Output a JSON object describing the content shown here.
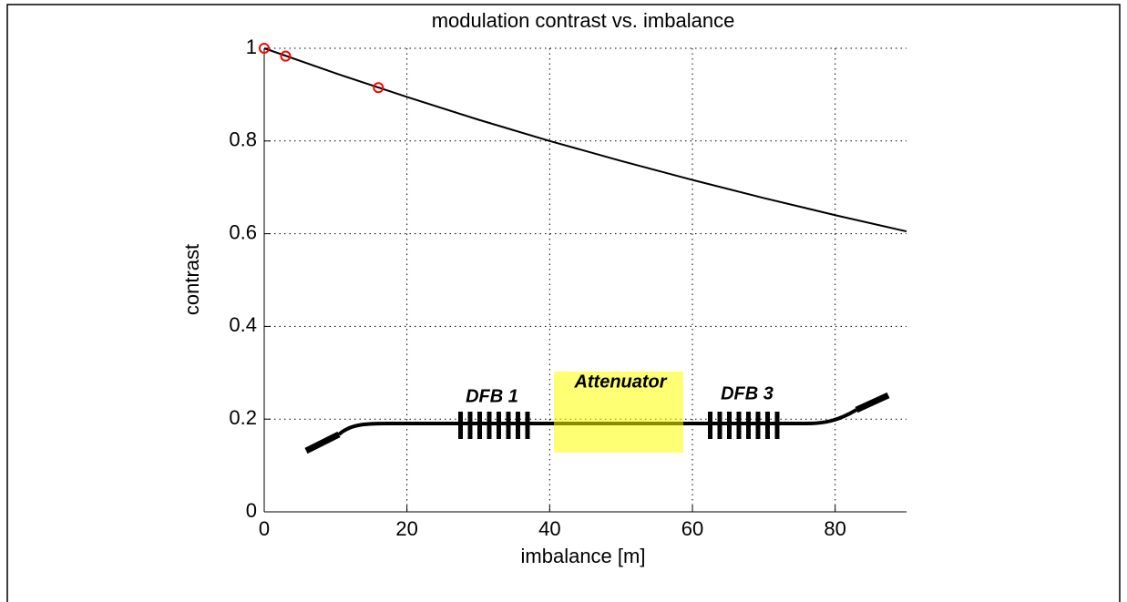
{
  "chart_data": {
    "type": "line",
    "title": "modulation contrast vs. imbalance",
    "x_label": "imbalance [m]",
    "y_label": "contrast",
    "xlim": [
      0,
      90
    ],
    "ylim": [
      0,
      1
    ],
    "xticks": [
      0,
      20,
      40,
      60,
      80
    ],
    "yticks": [
      0,
      0.2,
      0.4,
      0.6,
      0.8,
      1
    ],
    "grid": true,
    "series": [
      {
        "type": "line",
        "color": "#000000",
        "x": [
          0,
          10,
          20,
          30,
          40,
          50,
          60,
          70,
          80,
          90
        ],
        "values": [
          1,
          0.946,
          0.895,
          0.846,
          0.8,
          0.757,
          0.716,
          0.677,
          0.64,
          0.605
        ]
      },
      {
        "type": "scatter",
        "color": "#ff0000",
        "x": [
          0,
          3,
          16
        ],
        "values": [
          1,
          0.983,
          0.915
        ]
      }
    ],
    "annotations": [
      "DFB 1",
      "Attenuator",
      "DFB 3"
    ]
  }
}
